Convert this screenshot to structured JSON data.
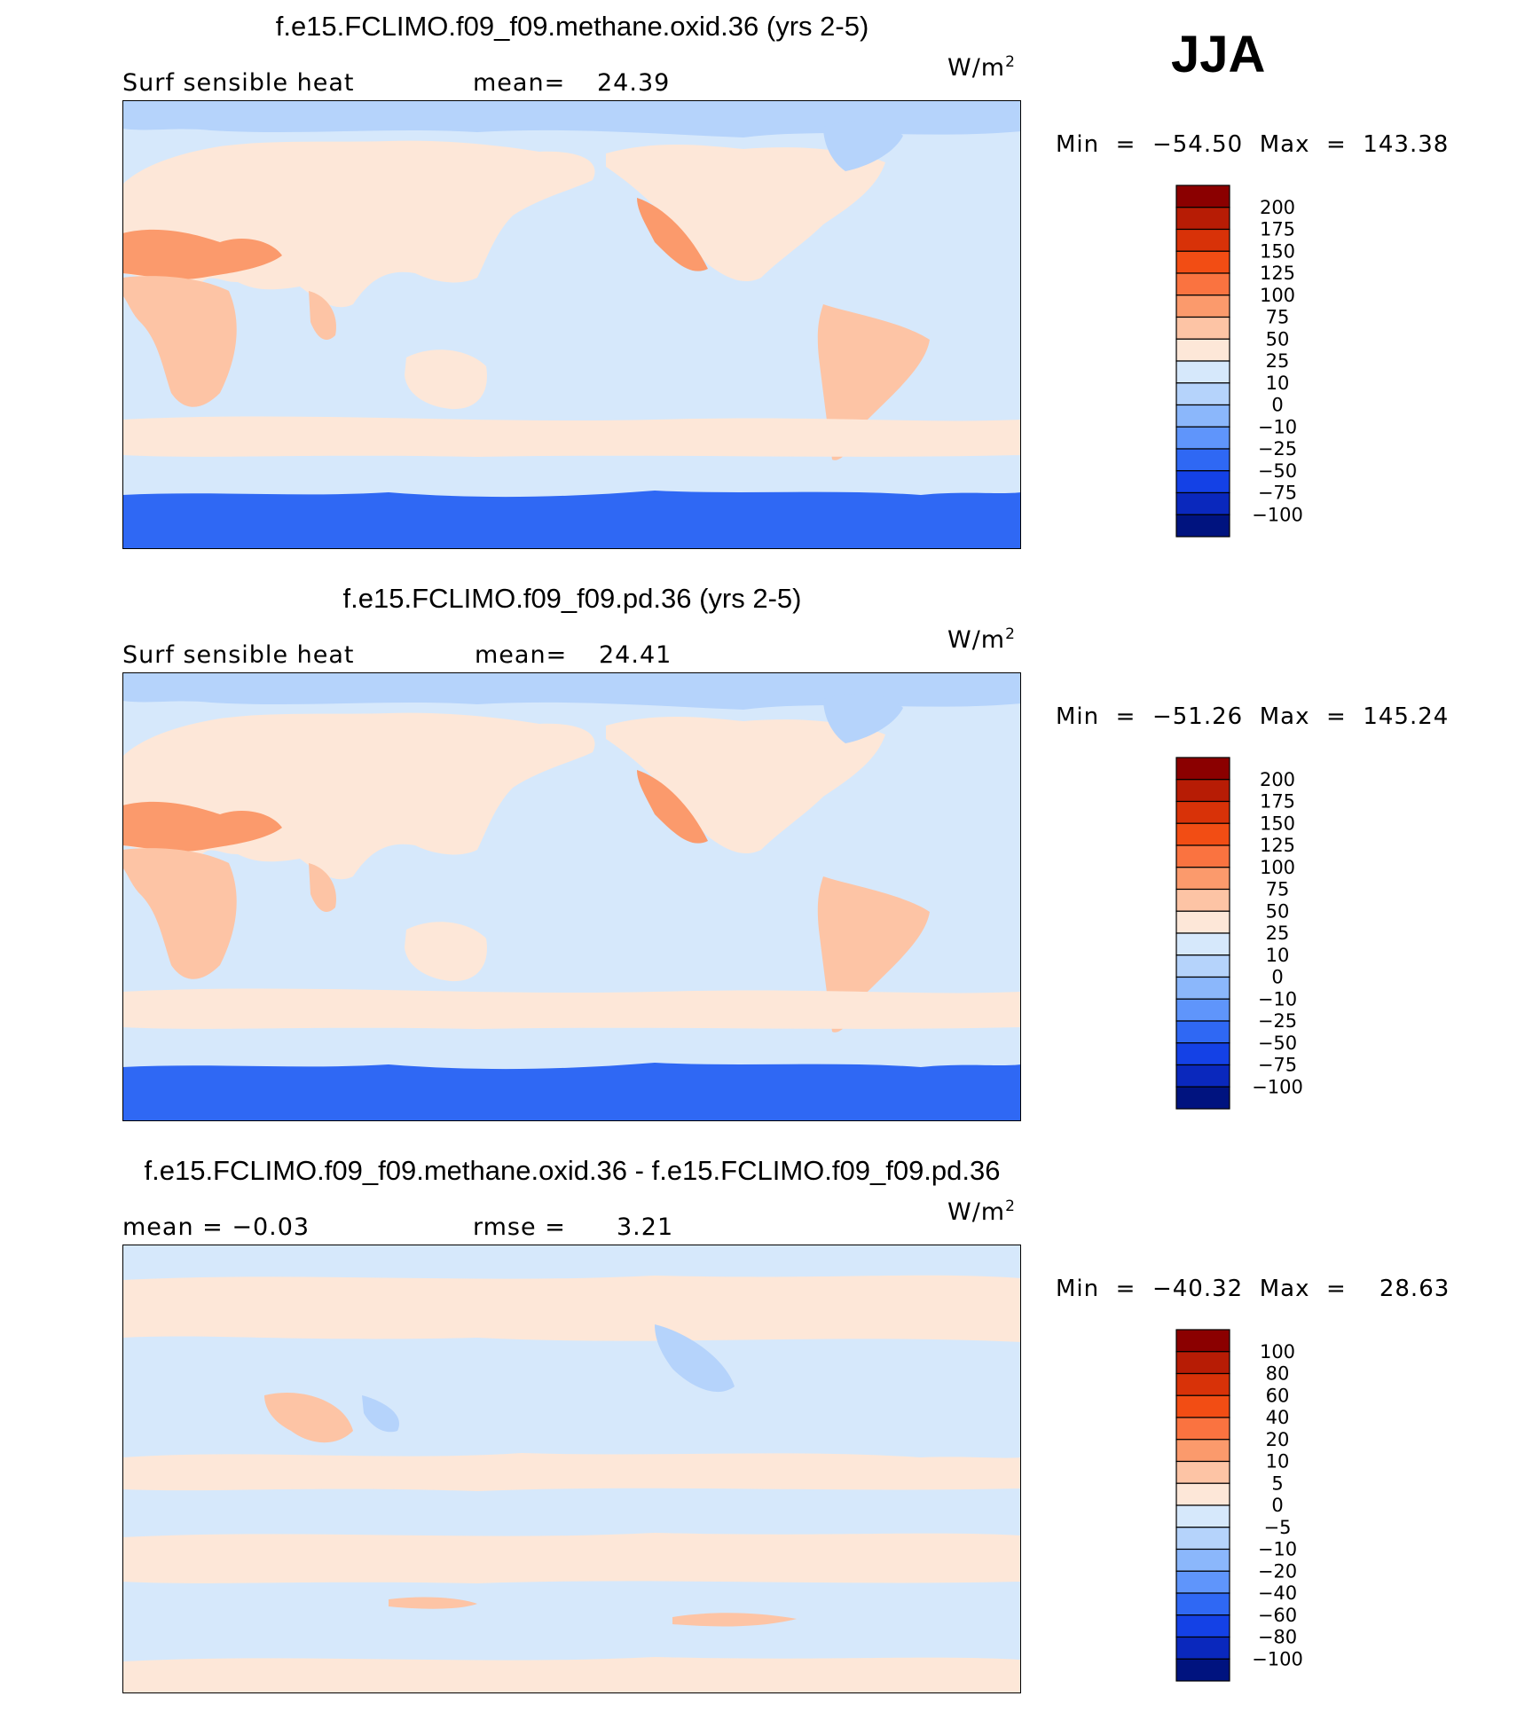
{
  "season": "JJA",
  "panels": [
    {
      "title": "f.e15.FCLIMO.f09_f09.methane.oxid.36 (yrs 2-5)",
      "left_label": "Surf  sensible  heat",
      "stat_label": "mean=",
      "stat_value": "24.39",
      "unit_base": "W/m",
      "unit_exp": "2",
      "minmax": "Min  =  −54.50  Max  =  143.38",
      "colorbar": {
        "labels": [
          "200",
          "175",
          "150",
          "125",
          "100",
          "75",
          "50",
          "25",
          "10",
          "0",
          "−10",
          "−25",
          "−50",
          "−75",
          "−100"
        ],
        "colors": [
          "#8b0000",
          "#b71c05",
          "#d83208",
          "#f24d14",
          "#fa7340",
          "#fb9a6c",
          "#fdc4a5",
          "#fde7d8",
          "#d6e8fb",
          "#b5d3fb",
          "#8bb7fb",
          "#5f95fb",
          "#2f68f4",
          "#1441e6",
          "#0a28bd",
          "#00137f"
        ]
      }
    },
    {
      "title": "f.e15.FCLIMO.f09_f09.pd.36 (yrs 2-5)",
      "left_label": "Surf  sensible  heat",
      "stat_label": "mean=",
      "stat_value": "24.41",
      "unit_base": "W/m",
      "unit_exp": "2",
      "minmax": "Min  =  −51.26  Max  =  145.24",
      "colorbar": {
        "labels": [
          "200",
          "175",
          "150",
          "125",
          "100",
          "75",
          "50",
          "25",
          "10",
          "0",
          "−10",
          "−25",
          "−50",
          "−75",
          "−100"
        ],
        "colors": [
          "#8b0000",
          "#b71c05",
          "#d83208",
          "#f24d14",
          "#fa7340",
          "#fb9a6c",
          "#fdc4a5",
          "#fde7d8",
          "#d6e8fb",
          "#b5d3fb",
          "#8bb7fb",
          "#5f95fb",
          "#2f68f4",
          "#1441e6",
          "#0a28bd",
          "#00137f"
        ]
      }
    },
    {
      "title": "f.e15.FCLIMO.f09_f09.methane.oxid.36 - f.e15.FCLIMO.f09_f09.pd.36",
      "left_label": "mean  =    −0.03",
      "stat_label": "rmse  =",
      "stat_value": "3.21",
      "unit_base": "W/m",
      "unit_exp": "2",
      "minmax": "Min  =  −40.32  Max  =    28.63",
      "colorbar": {
        "labels": [
          "100",
          "80",
          "60",
          "40",
          "20",
          "10",
          "5",
          "0",
          "−5",
          "−10",
          "−20",
          "−40",
          "−60",
          "−80",
          "−100"
        ],
        "colors": [
          "#8b0000",
          "#b71c05",
          "#d83208",
          "#f24d14",
          "#fa7340",
          "#fb9a6c",
          "#fdc4a5",
          "#fde7d8",
          "#d6e8fb",
          "#b5d3fb",
          "#8bb7fb",
          "#5f95fb",
          "#2f68f4",
          "#1441e6",
          "#0a28bd",
          "#00137f"
        ]
      }
    }
  ],
  "chart_data": [
    {
      "type": "heatmap",
      "title": "f.e15.FCLIMO.f09_f09.methane.oxid.36 (yrs 2-5)",
      "variable": "Surf  sensible  heat",
      "units": "W/m2",
      "mean": 24.39,
      "min": -54.5,
      "max": 143.38,
      "contour_levels": [
        -100,
        -75,
        -50,
        -25,
        -10,
        0,
        10,
        25,
        50,
        75,
        100,
        125,
        150,
        175,
        200
      ]
    },
    {
      "type": "heatmap",
      "title": "f.e15.FCLIMO.f09_f09.pd.36 (yrs 2-5)",
      "variable": "Surf  sensible  heat",
      "units": "W/m2",
      "mean": 24.41,
      "min": -51.26,
      "max": 145.24,
      "contour_levels": [
        -100,
        -75,
        -50,
        -25,
        -10,
        0,
        10,
        25,
        50,
        75,
        100,
        125,
        150,
        175,
        200
      ]
    },
    {
      "type": "heatmap",
      "title": "f.e15.FCLIMO.f09_f09.methane.oxid.36 - f.e15.FCLIMO.f09_f09.pd.36",
      "units": "W/m2",
      "mean": -0.03,
      "rmse": 3.21,
      "min": -40.32,
      "max": 28.63,
      "contour_levels": [
        -100,
        -80,
        -60,
        -40,
        -20,
        -10,
        -5,
        0,
        5,
        10,
        20,
        40,
        60,
        80,
        100
      ]
    }
  ]
}
